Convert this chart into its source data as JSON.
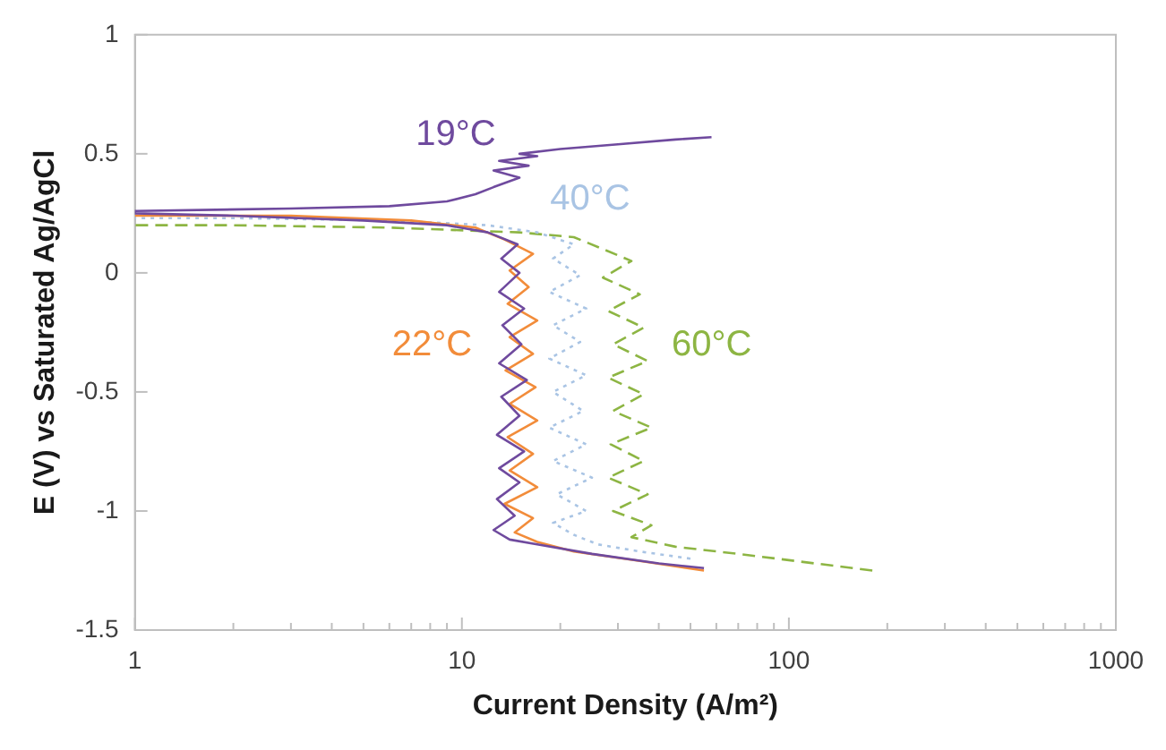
{
  "chart_data": {
    "type": "line",
    "xlabel": "Current Density (A/m²)",
    "ylabel": "E (V) vs Saturated Ag/AgCl",
    "log": "x",
    "xlim": [
      1,
      1000
    ],
    "ylim": [
      -1.5,
      1
    ],
    "xticks": [
      1,
      {
        "value": 2,
        "label": null
      },
      {
        "value": 3,
        "label": null
      },
      {
        "value": 4,
        "label": null
      },
      {
        "value": 5,
        "label": null
      },
      {
        "value": 6,
        "label": null
      },
      {
        "value": 7,
        "label": null
      },
      {
        "value": 8,
        "label": null
      },
      {
        "value": 9,
        "label": null
      },
      10,
      {
        "value": 20,
        "label": null
      },
      {
        "value": 30,
        "label": null
      },
      {
        "value": 40,
        "label": null
      },
      {
        "value": 50,
        "label": null
      },
      {
        "value": 60,
        "label": null
      },
      {
        "value": 70,
        "label": null
      },
      {
        "value": 80,
        "label": null
      },
      {
        "value": 90,
        "label": null
      },
      100,
      {
        "value": 200,
        "label": null
      },
      {
        "value": 300,
        "label": null
      },
      {
        "value": 400,
        "label": null
      },
      {
        "value": 500,
        "label": null
      },
      {
        "value": 600,
        "label": null
      },
      {
        "value": 700,
        "label": null
      },
      {
        "value": 800,
        "label": null
      },
      {
        "value": 900,
        "label": null
      },
      1000
    ],
    "yticks": [
      -1.5,
      -1,
      -0.5,
      0,
      0.5,
      1
    ],
    "grid": false,
    "legend": false,
    "marker": "none",
    "series": [
      {
        "name": "19°C",
        "color": "#6f4a9e",
        "line_style": "solid",
        "x": [
          55,
          40,
          25,
          17,
          14,
          12.5,
          14.5,
          12.8,
          15,
          13,
          15.5,
          12.8,
          15,
          13.2,
          15.8,
          13,
          15.2,
          13.3,
          15.5,
          13,
          15,
          13.2,
          14.8,
          12,
          9,
          5,
          2,
          1,
          1,
          3,
          6,
          9,
          11,
          12.5,
          15,
          12.5,
          16,
          13,
          17,
          15,
          20,
          30,
          45,
          58
        ],
        "values": [
          -1.24,
          -1.22,
          -1.18,
          -1.14,
          -1.12,
          -1.08,
          -1.02,
          -0.95,
          -0.88,
          -0.82,
          -0.75,
          -0.68,
          -0.6,
          -0.52,
          -0.45,
          -0.38,
          -0.3,
          -0.22,
          -0.15,
          -0.08,
          0,
          0.06,
          0.12,
          0.17,
          0.2,
          0.22,
          0.24,
          0.25,
          0.26,
          0.27,
          0.28,
          0.3,
          0.33,
          0.36,
          0.4,
          0.43,
          0.45,
          0.47,
          0.49,
          0.5,
          0.52,
          0.54,
          0.56,
          0.57
        ]
      },
      {
        "name": "22°C",
        "color": "#f28c3a",
        "line_style": "solid",
        "x": [
          55,
          35,
          22,
          17,
          14.5,
          16.5,
          13.5,
          17,
          14,
          16.5,
          13.8,
          17,
          14,
          16.8,
          13.6,
          16.5,
          14,
          17,
          13.8,
          16,
          14,
          16.5,
          13.5,
          11,
          7,
          3,
          1
        ],
        "values": [
          -1.25,
          -1.21,
          -1.17,
          -1.13,
          -1.09,
          -1.03,
          -0.97,
          -0.9,
          -0.83,
          -0.76,
          -0.69,
          -0.62,
          -0.55,
          -0.48,
          -0.41,
          -0.34,
          -0.27,
          -0.2,
          -0.13,
          -0.06,
          0.01,
          0.08,
          0.14,
          0.19,
          0.22,
          0.24,
          0.24
        ]
      },
      {
        "name": "40°C",
        "color": "#a9c4e4",
        "line_style": "dotted",
        "x": [
          50,
          35,
          26,
          22,
          19,
          24,
          19.5,
          25,
          19,
          24,
          18.5,
          23.5,
          19,
          24,
          18.5,
          23,
          19,
          24,
          18.5,
          23,
          19,
          22,
          17,
          12,
          6,
          2,
          1
        ],
        "values": [
          -1.2,
          -1.17,
          -1.14,
          -1.1,
          -1.05,
          -1.0,
          -0.93,
          -0.86,
          -0.79,
          -0.72,
          -0.65,
          -0.58,
          -0.5,
          -0.43,
          -0.36,
          -0.29,
          -0.22,
          -0.15,
          -0.08,
          -0.01,
          0.06,
          0.12,
          0.17,
          0.2,
          0.22,
          0.23,
          0.23
        ]
      },
      {
        "name": "60°C",
        "color": "#8db543",
        "line_style": "dashed",
        "x": [
          180,
          120,
          70,
          45,
          33,
          38,
          29,
          37,
          28,
          36,
          28.5,
          38,
          29,
          36,
          28,
          37,
          29,
          36,
          28,
          35,
          27,
          33,
          27,
          22,
          15,
          6,
          2,
          1
        ],
        "values": [
          -1.25,
          -1.22,
          -1.18,
          -1.15,
          -1.11,
          -1.06,
          -1.0,
          -0.93,
          -0.86,
          -0.79,
          -0.72,
          -0.65,
          -0.58,
          -0.51,
          -0.44,
          -0.37,
          -0.3,
          -0.23,
          -0.16,
          -0.09,
          -0.02,
          0.05,
          0.1,
          0.15,
          0.17,
          0.19,
          0.2,
          0.2
        ]
      }
    ]
  }
}
